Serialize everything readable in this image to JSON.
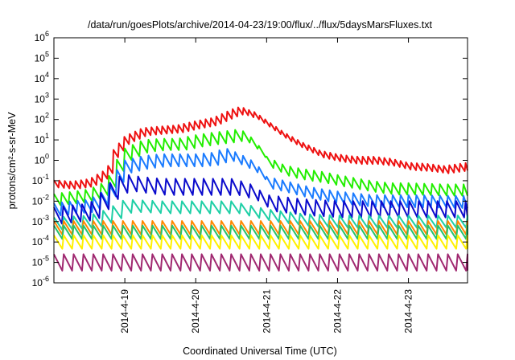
{
  "chart_data": {
    "type": "line",
    "title": "/data/run/goesPlots/archive/2014-04-23/19:00/flux/../flux/5daysMarsFluxes.txt",
    "xlabel": "Coordinated Universal Time (UTC)",
    "ylabel": "protons/cm²-s-sr-MeV",
    "yscale": "log",
    "ylim": [
      1e-06,
      1000000.0
    ],
    "y_tick_exponents": [
      -6,
      -5,
      -4,
      -3,
      -2,
      -1,
      0,
      1,
      2,
      3,
      4,
      5,
      6
    ],
    "xlim": [
      "2014-04-18 00:00",
      "2014-04-23 20:00"
    ],
    "x_ticks": [
      {
        "date": "2014-04-19 00:00",
        "label": "2014-4-19"
      },
      {
        "date": "2014-04-20 00:00",
        "label": "2014-4-20"
      },
      {
        "date": "2014-04-21 00:00",
        "label": "2014-4-21"
      },
      {
        "date": "2014-04-22 00:00",
        "label": "2014-4-22"
      },
      {
        "date": "2014-04-23 00:00",
        "label": "2014-4-23"
      }
    ],
    "grid": false,
    "legend": "none",
    "series": [
      {
        "color": "#ee1111",
        "points": [
          [
            "2014-04-18 00:00",
            0.07
          ],
          [
            "2014-04-18 06:00",
            0.06
          ],
          [
            "2014-04-18 12:00",
            0.08
          ],
          [
            "2014-04-18 18:00",
            0.25
          ],
          [
            "2014-04-18 20:00",
            2
          ],
          [
            "2014-04-19 00:00",
            10
          ],
          [
            "2014-04-19 06:00",
            25
          ],
          [
            "2014-04-19 12:00",
            30
          ],
          [
            "2014-04-19 18:00",
            35
          ],
          [
            "2014-04-20 00:00",
            55
          ],
          [
            "2014-04-20 06:00",
            80
          ],
          [
            "2014-04-20 12:00",
            200
          ],
          [
            "2014-04-20 15:00",
            280
          ],
          [
            "2014-04-20 20:00",
            150
          ],
          [
            "2014-04-21 00:00",
            60
          ],
          [
            "2014-04-21 06:00",
            15
          ],
          [
            "2014-04-21 12:00",
            5
          ],
          [
            "2014-04-21 18:00",
            2
          ],
          [
            "2014-04-22 00:00",
            1.3
          ],
          [
            "2014-04-22 06:00",
            1
          ],
          [
            "2014-04-22 12:00",
            1
          ],
          [
            "2014-04-22 18:00",
            0.8
          ],
          [
            "2014-04-23 00:00",
            0.5
          ],
          [
            "2014-04-23 06:00",
            0.45
          ],
          [
            "2014-04-23 12:00",
            0.35
          ],
          [
            "2014-04-23 20:00",
            0.5
          ]
        ]
      },
      {
        "color": "#22ee00",
        "points": [
          [
            "2014-04-18 00:00",
            0.012
          ],
          [
            "2014-04-18 06:00",
            0.015
          ],
          [
            "2014-04-18 12:00",
            0.02
          ],
          [
            "2014-04-18 18:00",
            0.05
          ],
          [
            "2014-04-18 20:00",
            0.3
          ],
          [
            "2014-04-19 00:00",
            2
          ],
          [
            "2014-04-19 06:00",
            5
          ],
          [
            "2014-04-19 12:00",
            6
          ],
          [
            "2014-04-19 18:00",
            6
          ],
          [
            "2014-04-20 00:00",
            9
          ],
          [
            "2014-04-20 06:00",
            12
          ],
          [
            "2014-04-20 12:00",
            15
          ],
          [
            "2014-04-20 15:00",
            18
          ],
          [
            "2014-04-20 20:00",
            5
          ],
          [
            "2014-04-21 00:00",
            0.8
          ],
          [
            "2014-04-21 06:00",
            0.3
          ],
          [
            "2014-04-21 12:00",
            0.2
          ],
          [
            "2014-04-21 18:00",
            0.15
          ],
          [
            "2014-04-22 00:00",
            0.1
          ],
          [
            "2014-04-22 06:00",
            0.07
          ],
          [
            "2014-04-22 12:00",
            0.05
          ],
          [
            "2014-04-22 18:00",
            0.04
          ],
          [
            "2014-04-23 00:00",
            0.04
          ],
          [
            "2014-04-23 12:00",
            0.035
          ],
          [
            "2014-04-23 20:00",
            0.035
          ]
        ]
      },
      {
        "color": "#1a7bff",
        "points": [
          [
            "2014-04-18 00:00",
            0.004
          ],
          [
            "2014-04-18 06:00",
            0.005
          ],
          [
            "2014-04-18 12:00",
            0.006
          ],
          [
            "2014-04-18 18:00",
            0.02
          ],
          [
            "2014-04-18 20:00",
            0.1
          ],
          [
            "2014-04-19 00:00",
            0.5
          ],
          [
            "2014-04-19 06:00",
            0.8
          ],
          [
            "2014-04-19 12:00",
            1
          ],
          [
            "2014-04-19 18:00",
            1
          ],
          [
            "2014-04-20 00:00",
            1
          ],
          [
            "2014-04-20 06:00",
            1.2
          ],
          [
            "2014-04-20 10:00",
            2
          ],
          [
            "2014-04-20 15:00",
            1
          ],
          [
            "2014-04-20 20:00",
            0.4
          ],
          [
            "2014-04-21 00:00",
            0.08
          ],
          [
            "2014-04-21 06:00",
            0.05
          ],
          [
            "2014-04-21 12:00",
            0.03
          ],
          [
            "2014-04-21 18:00",
            0.02
          ],
          [
            "2014-04-22 00:00",
            0.015
          ],
          [
            "2014-04-22 06:00",
            0.012
          ],
          [
            "2014-04-22 12:00",
            0.01
          ],
          [
            "2014-04-23 00:00",
            0.01
          ],
          [
            "2014-04-23 20:00",
            0.009
          ]
        ]
      },
      {
        "color": "#0a0acc",
        "points": [
          [
            "2014-04-18 00:00",
            0.002
          ],
          [
            "2014-04-18 06:00",
            0.0025
          ],
          [
            "2014-04-18 12:00",
            0.003
          ],
          [
            "2014-04-18 18:00",
            0.02
          ],
          [
            "2014-04-18 20:00",
            0.05
          ],
          [
            "2014-04-19 00:00",
            0.08
          ],
          [
            "2014-04-19 06:00",
            0.06
          ],
          [
            "2014-04-19 12:00",
            0.05
          ],
          [
            "2014-04-19 18:00",
            0.05
          ],
          [
            "2014-04-20 00:00",
            0.05
          ],
          [
            "2014-04-20 12:00",
            0.05
          ],
          [
            "2014-04-20 18:00",
            0.03
          ],
          [
            "2014-04-21 00:00",
            0.008
          ],
          [
            "2014-04-21 12:00",
            0.005
          ],
          [
            "2014-04-22 00:00",
            0.004
          ],
          [
            "2014-04-22 12:00",
            0.004
          ],
          [
            "2014-04-23 00:00",
            0.004
          ],
          [
            "2014-04-23 20:00",
            0.004
          ]
        ]
      },
      {
        "color": "#1ecfa6",
        "points": [
          [
            "2014-04-18 00:00",
            0.0008
          ],
          [
            "2014-04-18 12:00",
            0.001
          ],
          [
            "2014-04-18 18:00",
            0.002
          ],
          [
            "2014-04-19 00:00",
            0.006
          ],
          [
            "2014-04-19 12:00",
            0.005
          ],
          [
            "2014-04-20 00:00",
            0.005
          ],
          [
            "2014-04-20 12:00",
            0.005
          ],
          [
            "2014-04-21 00:00",
            0.002
          ],
          [
            "2014-04-21 12:00",
            0.0012
          ],
          [
            "2014-04-22 00:00",
            0.001
          ],
          [
            "2014-04-23 00:00",
            0.001
          ],
          [
            "2014-04-23 20:00",
            0.001
          ]
        ]
      },
      {
        "color": "#ff8800",
        "points": [
          [
            "2014-04-18 00:00",
            0.0005
          ],
          [
            "2014-04-19 00:00",
            0.0005
          ],
          [
            "2014-04-20 00:00",
            0.0005
          ],
          [
            "2014-04-21 00:00",
            0.0005
          ],
          [
            "2014-04-22 00:00",
            0.0005
          ],
          [
            "2014-04-23 20:00",
            0.0005
          ]
        ]
      },
      {
        "color": "#26c26a",
        "points": [
          [
            "2014-04-18 00:00",
            0.0003
          ],
          [
            "2014-04-19 00:00",
            0.0003
          ],
          [
            "2014-04-20 00:00",
            0.0003
          ],
          [
            "2014-04-21 00:00",
            0.0003
          ],
          [
            "2014-04-22 00:00",
            0.0003
          ],
          [
            "2014-04-23 20:00",
            0.0003
          ]
        ]
      },
      {
        "color": "#fff000",
        "points": [
          [
            "2014-04-18 00:00",
            0.0001
          ],
          [
            "2014-04-19 00:00",
            0.0001
          ],
          [
            "2014-04-20 00:00",
            0.0001
          ],
          [
            "2014-04-21 00:00",
            0.0001
          ],
          [
            "2014-04-22 00:00",
            0.0001
          ],
          [
            "2014-04-23 20:00",
            0.0001
          ]
        ]
      },
      {
        "color": "#a02870",
        "points": [
          [
            "2014-04-18 00:00",
            1e-05
          ],
          [
            "2014-04-19 00:00",
            1e-05
          ],
          [
            "2014-04-20 00:00",
            1e-05
          ],
          [
            "2014-04-21 00:00",
            1e-05
          ],
          [
            "2014-04-22 00:00",
            1e-05
          ],
          [
            "2014-04-23 20:00",
            1e-05
          ]
        ]
      }
    ]
  }
}
